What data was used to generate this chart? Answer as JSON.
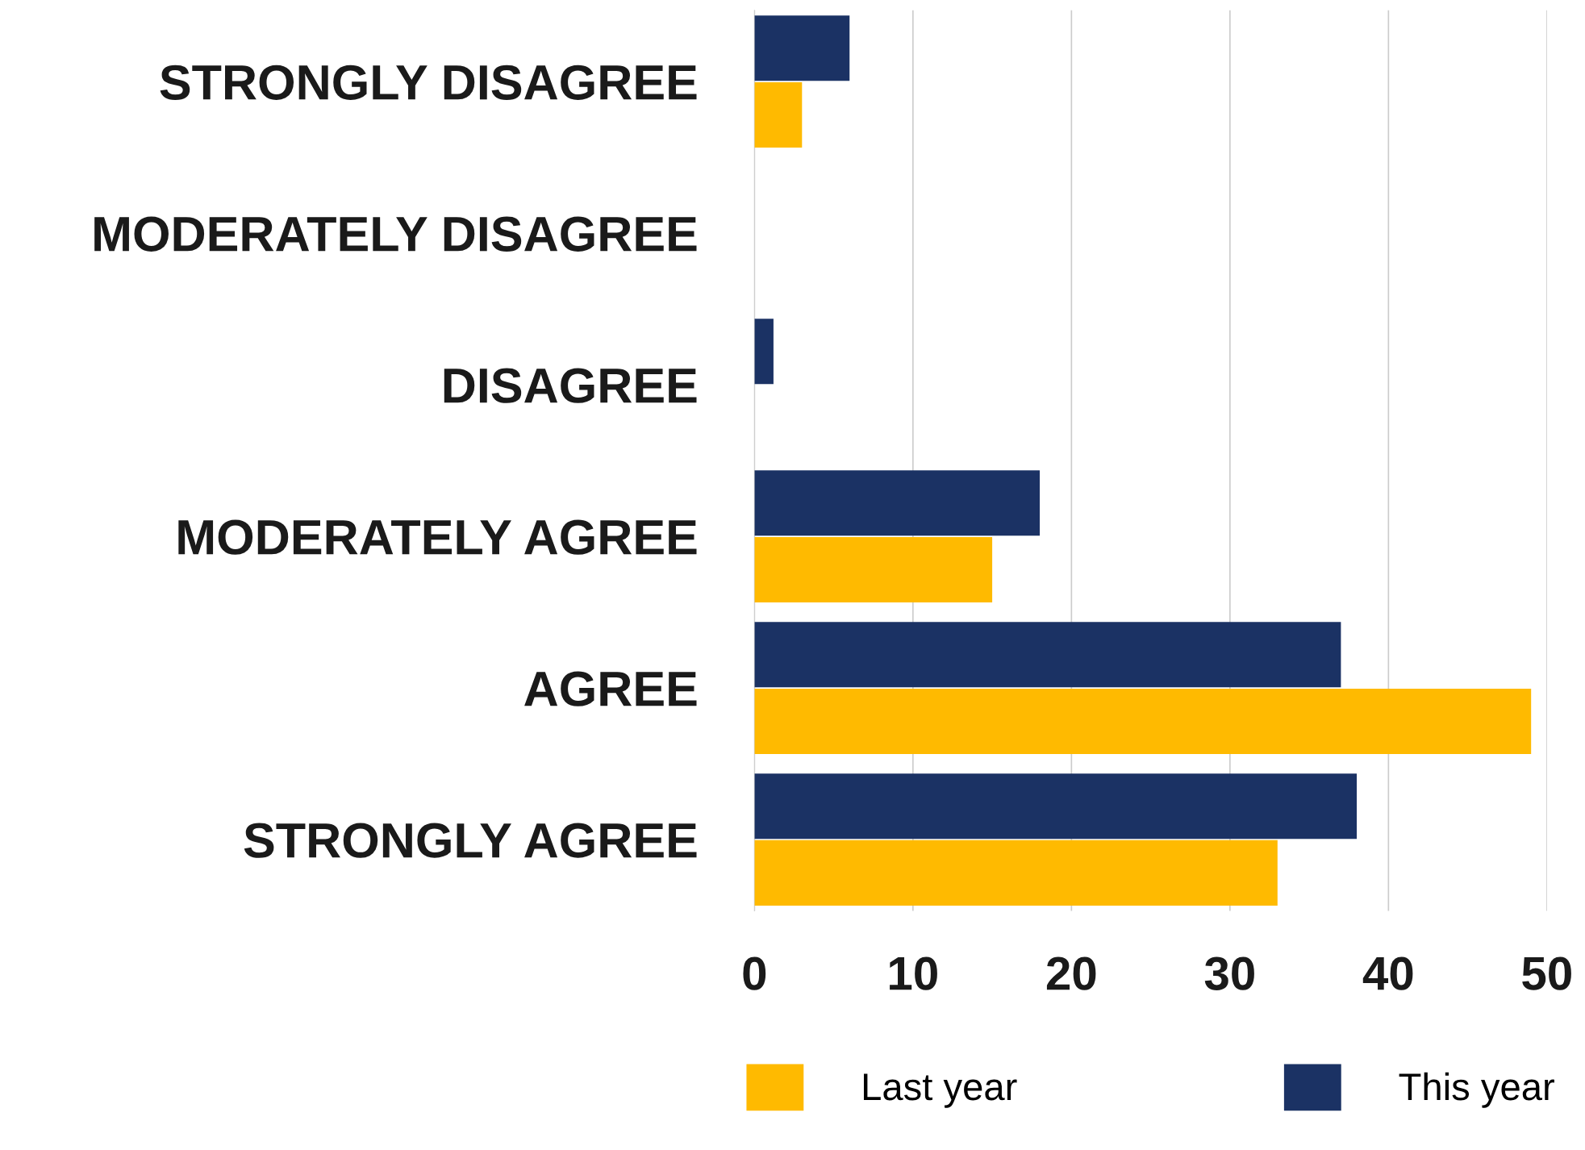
{
  "chart_data": {
    "type": "bar",
    "orientation": "horizontal",
    "categories": [
      "STRONGLY DISAGREE",
      "MODERATELY DISAGREE",
      "DISAGREE",
      "MODERATELY AGREE",
      "AGREE",
      "STRONGLY AGREE"
    ],
    "series": [
      {
        "name": "Last year",
        "color": "#ffba00",
        "values": [
          3,
          0,
          0,
          15,
          49,
          33
        ]
      },
      {
        "name": "This year",
        "color": "#1b3264",
        "values": [
          6,
          0,
          1.2,
          18,
          37,
          38
        ]
      }
    ],
    "xlim": [
      0,
      50
    ],
    "xticks": [
      0,
      10,
      20,
      30,
      40,
      50
    ],
    "grid": "x",
    "legend": "bottom"
  }
}
